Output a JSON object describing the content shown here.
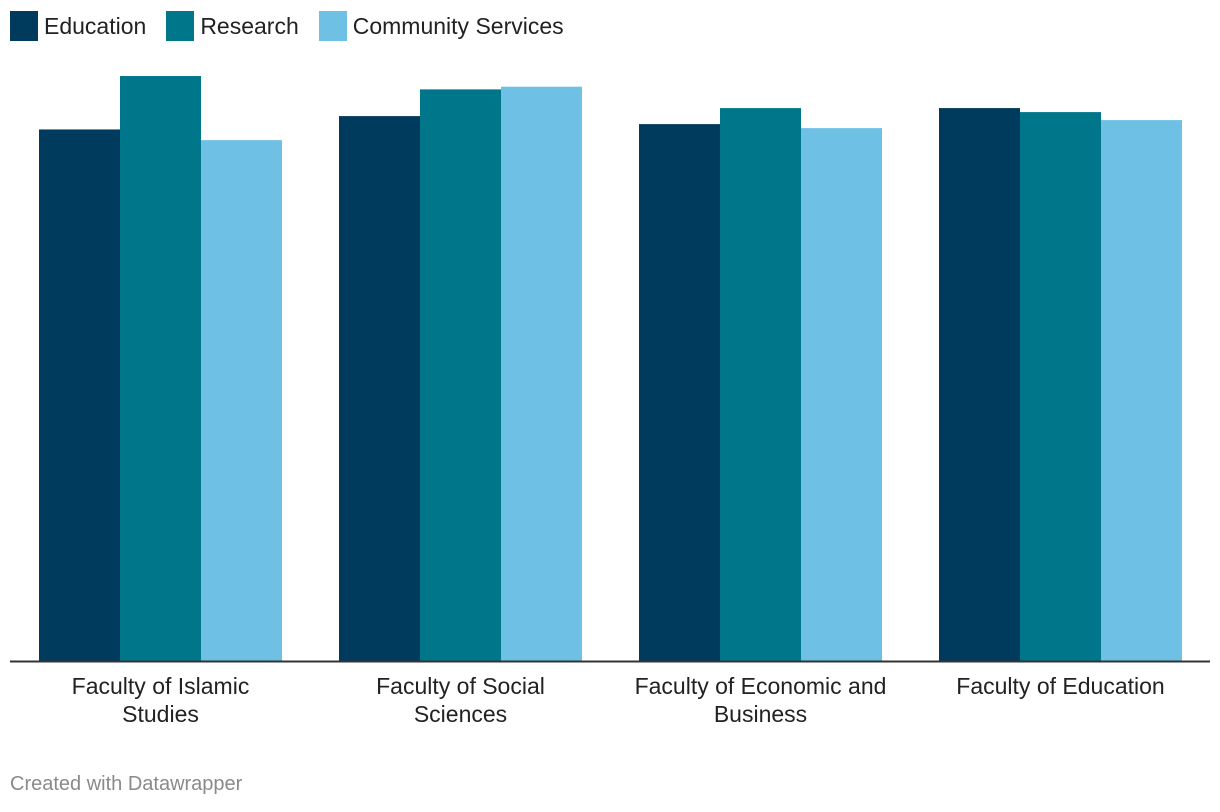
{
  "chart_data": {
    "type": "bar",
    "title": "",
    "xlabel": "",
    "ylabel": "",
    "ylim": [
      0,
      4.5
    ],
    "grid": false,
    "legend": "top-left",
    "categories": [
      [
        "Faculty of Islamic",
        "Studies"
      ],
      [
        "Faculty of Social",
        "Sciences"
      ],
      [
        "Faculty of Economic and",
        "Business"
      ],
      [
        "Faculty of Education"
      ]
    ],
    "series": [
      {
        "name": "Education",
        "color": "#003a5c",
        "values": [
          3.98,
          4.08,
          4.02,
          4.14
        ]
      },
      {
        "name": "Research",
        "color": "#00768b",
        "values": [
          4.38,
          4.28,
          4.14,
          4.11
        ]
      },
      {
        "name": "Community Services",
        "color": "#6ec0e5",
        "values": [
          3.9,
          4.3,
          3.99,
          4.05
        ]
      }
    ]
  },
  "footer": {
    "credit": "Created with Datawrapper"
  }
}
